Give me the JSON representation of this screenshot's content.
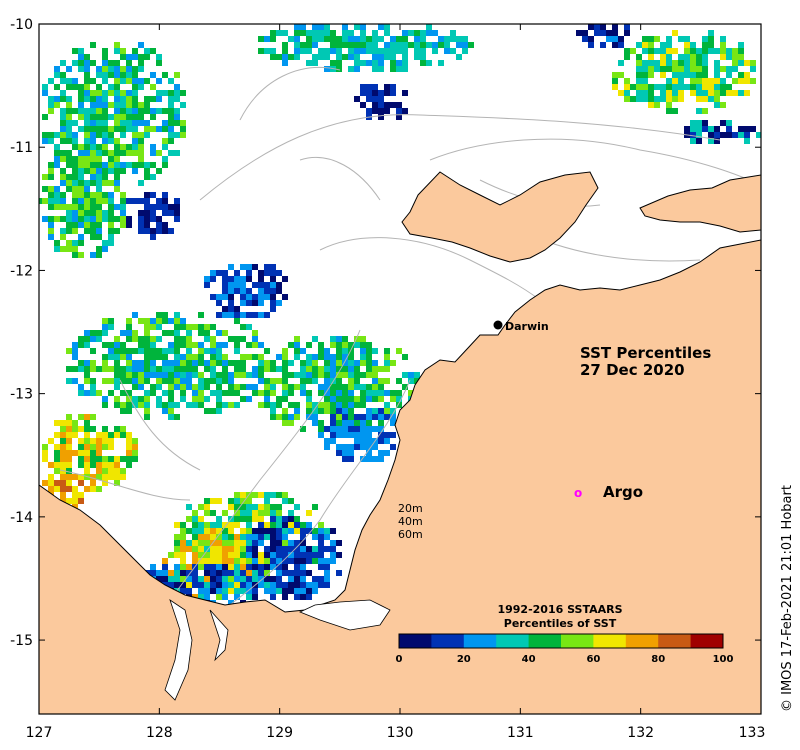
{
  "map": {
    "title_line1": "SST Percentiles",
    "title_line2": "27 Dec 2020",
    "x_ticks": [
      "127",
      "128",
      "129",
      "130",
      "131",
      "132",
      "133"
    ],
    "y_ticks": [
      "-10",
      "-11",
      "-12",
      "-13",
      "-14",
      "-15"
    ],
    "lon_range": [
      127,
      133
    ],
    "lat_range": [
      -15.6,
      -10
    ],
    "place_label": "Darwin",
    "argo_symbol": "o",
    "argo_label": "Argo",
    "depth_labels": [
      "20m",
      "40m",
      "60m"
    ],
    "credit": "© IMOS 17-Feb-2021 21:01 Hobart"
  },
  "legend": {
    "title_line1": "1992-2016 SSTAARS",
    "title_line2": "Percentiles of SST",
    "tick_labels": [
      "0",
      "20",
      "40",
      "60",
      "80",
      "100"
    ],
    "colors": [
      "#000a6e",
      "#0032b4",
      "#0096f0",
      "#00c8b4",
      "#00b43c",
      "#78e614",
      "#f0e600",
      "#f0a000",
      "#c85a14",
      "#a00000"
    ]
  },
  "colors": {
    "land": "#fbc99d",
    "ocean": "#ffffff",
    "coast": "#000000",
    "bathymetry": "#b4b4b4",
    "argo": "#ff00ff"
  }
}
